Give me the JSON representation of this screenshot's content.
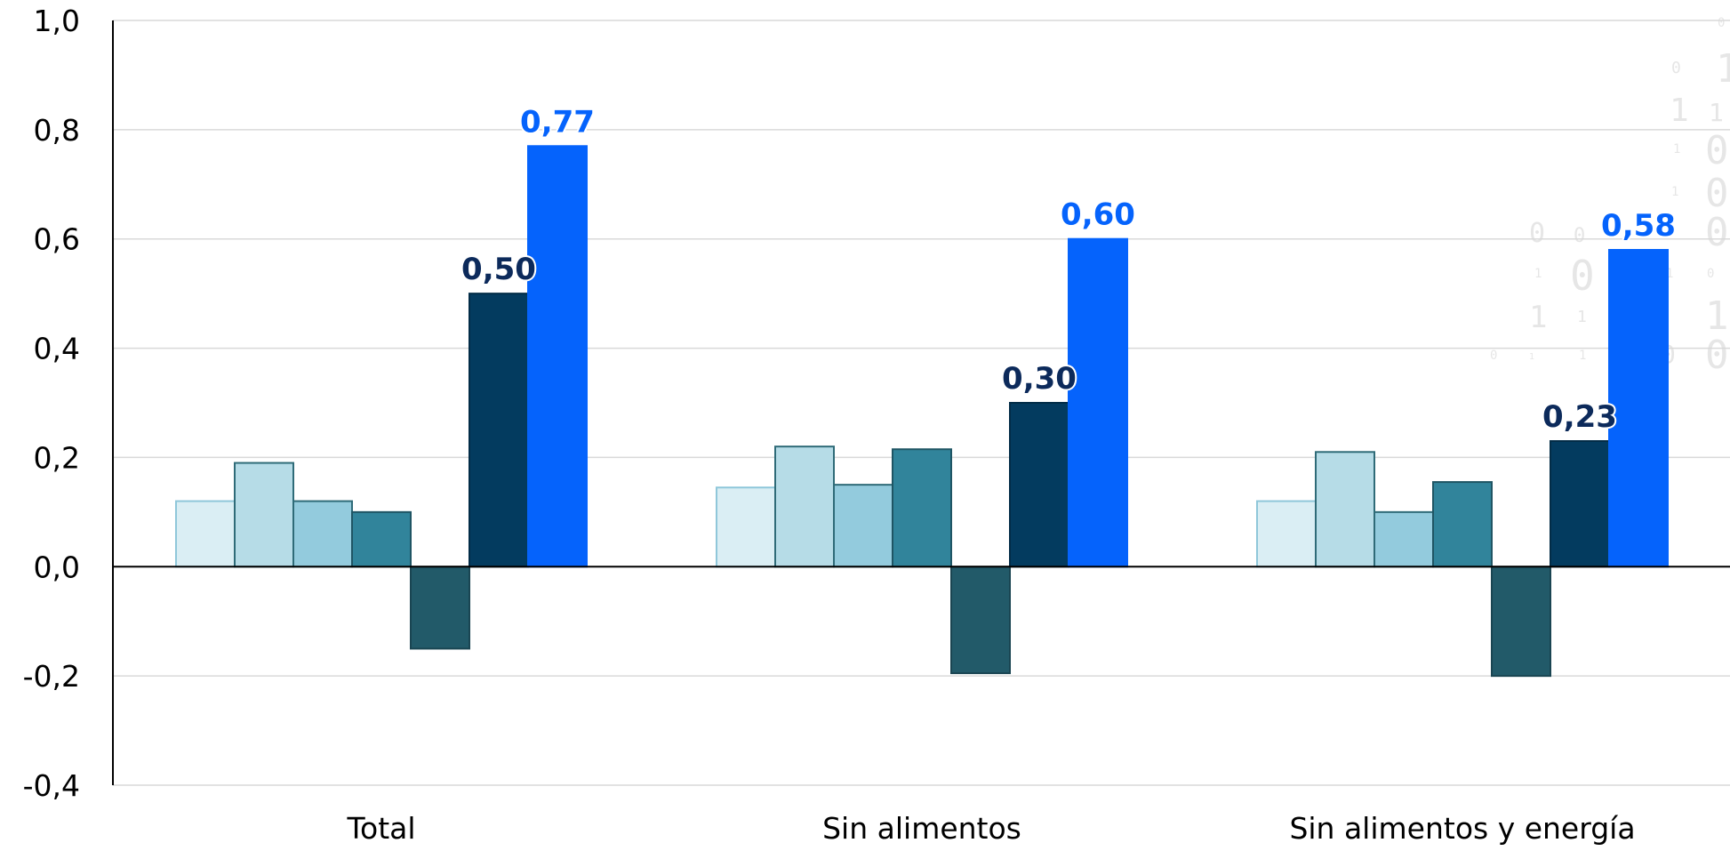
{
  "chart_data": {
    "type": "bar",
    "title": "",
    "xlabel": "",
    "ylabel": "",
    "categories": [
      "Total",
      "Sin alimentos",
      "Sin alimentos y energía"
    ],
    "ylim": [
      -0.4,
      1.0
    ],
    "yticks": [
      -0.4,
      -0.2,
      0.0,
      0.2,
      0.4,
      0.6,
      0.8,
      1.0
    ],
    "ytick_labels": [
      "-0,4",
      "-0,2",
      "0,0",
      "0,2",
      "0,4",
      "0,6",
      "0,8",
      "1,0"
    ],
    "grid": true,
    "legend": "none",
    "series": [
      {
        "color": "#daeef4",
        "stroke": "#8fc7da",
        "values": [
          0.12,
          0.145,
          0.12
        ]
      },
      {
        "color": "#b6dce7",
        "stroke": "#2f6b78",
        "values": [
          0.19,
          0.22,
          0.21
        ]
      },
      {
        "color": "#93cbdd",
        "stroke": "#2f6b78",
        "values": [
          0.12,
          0.15,
          0.1
        ]
      },
      {
        "color": "#31849b",
        "stroke": "#1f5564",
        "values": [
          0.1,
          0.215,
          0.155
        ]
      },
      {
        "color": "#225a69",
        "stroke": "#1a4552",
        "values": [
          -0.15,
          -0.195,
          -0.2
        ]
      },
      {
        "color": "#033b5f",
        "stroke": "#022c47",
        "values": [
          0.5,
          0.3,
          0.23
        ],
        "labels": [
          "0,50",
          "0,30",
          "0,23"
        ],
        "label_color": "#0c2a5b"
      },
      {
        "color": "#0563fc",
        "stroke": "#0563fc",
        "values": [
          0.77,
          0.6,
          0.58
        ],
        "labels": [
          "0,77",
          "0,60",
          "0,58"
        ],
        "label_color": "#0563fc"
      }
    ]
  }
}
